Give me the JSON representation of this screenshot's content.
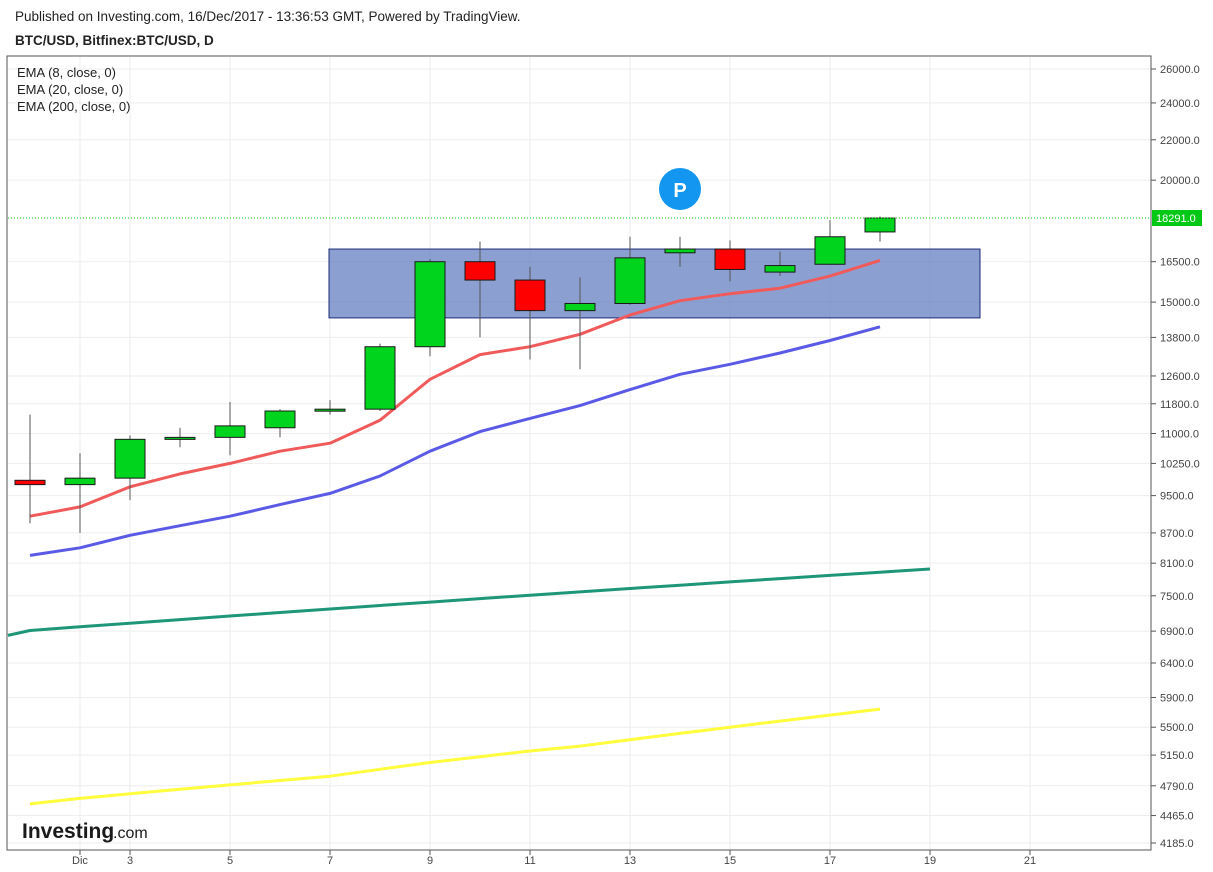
{
  "header": {
    "published": "Published on Investing.com, 16/Dec/2017 - 13:36:53 GMT, Powered by TradingView.",
    "symbol": "BTC/USD, Bitfinex:BTC/USD, D"
  },
  "logo": {
    "main": "Investing",
    "sub": ".com"
  },
  "colors": {
    "up": "#00d41c",
    "down": "#ff0000",
    "ema8": "#f05a5a",
    "ema20": "#5a5ae6",
    "ema200": "#1e9678",
    "extra": "#ffff3c",
    "box": "#5a78be",
    "last": "#00c814"
  },
  "chart_data": {
    "type": "candlestick",
    "title": "",
    "legend": [
      "EMA (8, close, 0)",
      "EMA (20, close, 0)",
      "EMA (200, close, 0)"
    ],
    "y_ticks": [
      26000,
      24000,
      22000,
      20000,
      16500,
      15000,
      13800,
      12600,
      11800,
      11000,
      10250,
      9500,
      8700,
      8100,
      7500,
      6900,
      6400,
      5900,
      5500,
      5150,
      4790,
      4465,
      4185
    ],
    "y_tick_labels": [
      "26000.0",
      "24000.0",
      "22000.0",
      "20000.0",
      "16500.0",
      "15000.0",
      "13800.0",
      "12600.0",
      "11800.0",
      "11000.0",
      "10250.0",
      "9500.0",
      "8700.0",
      "8100.0",
      "7500.0",
      "6900.0",
      "6400.0",
      "5900.0",
      "5500.0",
      "5150.0",
      "4790.0",
      "4465.0",
      "4185.0"
    ],
    "x_ticks": [
      2,
      3,
      5,
      7,
      9,
      11,
      13,
      15,
      17,
      19,
      21
    ],
    "x_tick_labels": [
      "Dic",
      "3",
      "5",
      "7",
      "9",
      "11",
      "13",
      "15",
      "17",
      "19",
      "21"
    ],
    "last_price": 18291,
    "last_price_label": "18291.0",
    "candles": [
      {
        "day": 1,
        "open": 9850,
        "high": 11500,
        "low": 8900,
        "close": 9750
      },
      {
        "day": 2,
        "open": 9750,
        "high": 10500,
        "low": 8700,
        "close": 9900
      },
      {
        "day": 3,
        "open": 9900,
        "high": 10950,
        "low": 9400,
        "close": 10850
      },
      {
        "day": 4,
        "open": 10850,
        "high": 11150,
        "low": 10650,
        "close": 10900
      },
      {
        "day": 5,
        "open": 10900,
        "high": 11850,
        "low": 10450,
        "close": 11200
      },
      {
        "day": 6,
        "open": 11150,
        "high": 11650,
        "low": 10900,
        "close": 11600
      },
      {
        "day": 7,
        "open": 11600,
        "high": 11900,
        "low": 11500,
        "close": 11650
      },
      {
        "day": 8,
        "open": 11650,
        "high": 13600,
        "low": 11600,
        "close": 13500
      },
      {
        "day": 9,
        "open": 13500,
        "high": 16600,
        "low": 13200,
        "close": 16500
      },
      {
        "day": 10,
        "open": 16500,
        "high": 17300,
        "low": 13800,
        "close": 15800
      },
      {
        "day": 11,
        "open": 15800,
        "high": 16300,
        "low": 13100,
        "close": 14700
      },
      {
        "day": 12,
        "open": 14700,
        "high": 15900,
        "low": 12800,
        "close": 14950
      },
      {
        "day": 13,
        "open": 14950,
        "high": 17500,
        "low": 14900,
        "close": 16650
      },
      {
        "day": 14,
        "open": 16850,
        "high": 17500,
        "low": 16300,
        "close": 17000
      },
      {
        "day": 15,
        "open": 17000,
        "high": 17350,
        "low": 15750,
        "close": 16200
      },
      {
        "day": 16,
        "open": 16100,
        "high": 16900,
        "low": 15950,
        "close": 16350
      },
      {
        "day": 17,
        "open": 16400,
        "high": 18200,
        "low": 16400,
        "close": 17500
      },
      {
        "day": 18,
        "open": 17700,
        "high": 18350,
        "low": 17300,
        "close": 18291
      }
    ],
    "series": [
      {
        "name": "EMA (8, close, 0)",
        "x": [
          1,
          2,
          3,
          4,
          5,
          6,
          7,
          8,
          9,
          10,
          11,
          12,
          13,
          14,
          15,
          16,
          17,
          18
        ],
        "values": [
          9050,
          9250,
          9700,
          10000,
          10250,
          10550,
          10750,
          11350,
          12500,
          13250,
          13500,
          13900,
          14550,
          15050,
          15300,
          15500,
          15950,
          16550
        ]
      },
      {
        "name": "EMA (20, close, 0)",
        "x": [
          1,
          2,
          3,
          4,
          5,
          6,
          7,
          8,
          9,
          10,
          11,
          12,
          13,
          14,
          15,
          16,
          17,
          18
        ],
        "values": [
          8250,
          8400,
          8650,
          8850,
          9050,
          9300,
          9550,
          9950,
          10550,
          11050,
          11400,
          11750,
          12200,
          12650,
          12950,
          13300,
          13700,
          14150
        ]
      },
      {
        "name": "EMA (200, close, 0)",
        "x": [
          0,
          1,
          2,
          3,
          4,
          5,
          6,
          7,
          8,
          9,
          10,
          11,
          12,
          13,
          14,
          15,
          16,
          17,
          18,
          19
        ],
        "values": [
          6830,
          6910,
          6970,
          7030,
          7090,
          7150,
          7210,
          7270,
          7330,
          7390,
          7450,
          7510,
          7570,
          7630,
          7690,
          7750,
          7810,
          7870,
          7930,
          7990
        ]
      },
      {
        "x": [
          1,
          2,
          3,
          4,
          5,
          6,
          7,
          8,
          9,
          10,
          11,
          12,
          13,
          14,
          15,
          16,
          17,
          18
        ],
        "values": [
          4590,
          4650,
          4700,
          4750,
          4800,
          4850,
          4900,
          4980,
          5060,
          5130,
          5200,
          5260,
          5340,
          5420,
          5500,
          5580,
          5660,
          5740
        ]
      }
    ],
    "box": {
      "x_start": 7,
      "x_end": 20,
      "y_low": 14450,
      "y_high": 17000
    },
    "grid": true,
    "y_scale": "log",
    "last_price_line": "dotted"
  }
}
